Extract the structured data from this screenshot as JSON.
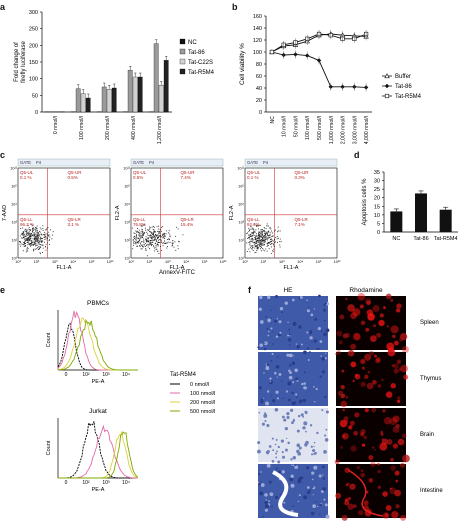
{
  "letters": {
    "a": "a",
    "b": "b",
    "c": "c",
    "d": "d",
    "e": "e",
    "f": "f"
  },
  "panel_a": {
    "ylabel": "Fold change of\nfirefly luciferase",
    "yticks": [
      "0",
      "50",
      "100",
      "150",
      "200",
      "250",
      "300"
    ],
    "categories": [
      "0 nmol/l",
      "100 nmol/l",
      "200 nmol/l",
      "400 nmol/l",
      "1,200 nmol/l"
    ],
    "legend": [
      "NC",
      "Tat-86",
      "Tat-C22S",
      "Tat-R5M4"
    ],
    "colors": {
      "NC": "#111111",
      "Tat-86": "#9a9a9a",
      "Tat-C22S": "#d2d2d2",
      "Tat-R5M4": "#222222"
    }
  },
  "panel_b": {
    "ylabel": "Cell viability %",
    "yticks": [
      "0",
      "20",
      "40",
      "60",
      "80",
      "100",
      "120",
      "140",
      "160"
    ],
    "categories": [
      "NC",
      "10 nmol/l",
      "50 nmol/l",
      "100 nmol/l",
      "500 nmol/l",
      "1,000 nmol/l",
      "2,000 nmol/l",
      "3,000 nmol/l",
      "4,000 nmol/l"
    ],
    "legend": [
      "Buffer",
      "Tat-86",
      "Tat-R5M4"
    ]
  },
  "panel_c": {
    "gate": "GATE",
    "gate_id": "P4",
    "ylabels": [
      "7-AAD",
      "FL2-A",
      "FL2-A"
    ],
    "xlabel": "FL1-A",
    "xtitle": "AnnexV-FITC",
    "quads": [
      {
        "ul": "Q5-UL",
        "ul_v": "0.1 %",
        "ur": "Q5-UR",
        "ur_v": "0.5%",
        "ll": "Q5-LL",
        "ll_v": "96.2 %",
        "lr": "Q5-LR",
        "lr_v": "3.1 %"
      },
      {
        "ul": "Q5-UL",
        "ul_v": "0.5%",
        "ur": "Q5-UR",
        "ur_v": "7.4%",
        "ll": "Q5-LL",
        "ll_v": "76.8%",
        "lr": "Q5-LR",
        "lr_v": "15.4%"
      },
      {
        "ul": "Q5-UL",
        "ul_v": "0.1 %",
        "ur": "Q5-UR",
        "ur_v": "0.3%",
        "ll": "Q5-LL",
        "ll_v": "92.6%",
        "lr": "Q5-LR",
        "lr_v": "7.1%"
      }
    ]
  },
  "panel_d": {
    "ylabel": "Apoptosis cells %",
    "yticks": [
      "0",
      "5",
      "10",
      "15",
      "20",
      "25",
      "30",
      "35"
    ],
    "categories": [
      "NC",
      "Tat-86",
      "Tat-R5M4"
    ]
  },
  "panel_e": {
    "top_title": "PBMCs",
    "bottom_title": "Jurkat",
    "ylabel": "Count",
    "xlabel": "PE-A",
    "legend_title": "Tat-R5M4",
    "legend": [
      "0 nmol/l",
      "100 nmol/l",
      "200 nmol/l",
      "500 nmol/l"
    ],
    "colors": [
      "#000000",
      "#e26aa8",
      "#d9d23a",
      "#7ea800"
    ]
  },
  "panel_f": {
    "col_he": "HE",
    "col_rho": "Rhodamine",
    "rows": [
      "Spleen",
      "Thymus",
      "Brain",
      "Intestine"
    ]
  },
  "chart_data": [
    {
      "type": "bar",
      "title": "",
      "ylabel": "Fold change of firefly luciferase",
      "ylim": [
        0,
        300
      ],
      "categories": [
        "0 nmol/l",
        "100 nmol/l",
        "200 nmol/l",
        "400 nmol/l",
        "1,200 nmol/l"
      ],
      "series": [
        {
          "name": "NC",
          "values": [
            1,
            1,
            1,
            1,
            1
          ]
        },
        {
          "name": "Tat-86",
          "values": [
            1,
            70,
            75,
            125,
            205
          ]
        },
        {
          "name": "Tat-C22S",
          "values": [
            1,
            55,
            68,
            105,
            80
          ]
        },
        {
          "name": "Tat-R5M4",
          "values": [
            1,
            42,
            72,
            105,
            155
          ]
        }
      ]
    },
    {
      "type": "line",
      "ylabel": "Cell viability %",
      "ylim": [
        0,
        160
      ],
      "categories": [
        "NC",
        "10 nmol/l",
        "50 nmol/l",
        "100 nmol/l",
        "500 nmol/l",
        "1,000 nmol/l",
        "2,000 nmol/l",
        "3,000 nmol/l",
        "4,000 nmol/l"
      ],
      "series": [
        {
          "name": "Buffer",
          "values": [
            100,
            110,
            112,
            118,
            128,
            130,
            128,
            127,
            126
          ]
        },
        {
          "name": "Tat-86",
          "values": [
            100,
            95,
            96,
            94,
            86,
            42,
            42,
            42,
            41
          ]
        },
        {
          "name": "Tat-R5M4",
          "values": [
            100,
            112,
            116,
            122,
            130,
            128,
            122,
            122,
            130
          ]
        }
      ]
    },
    {
      "type": "bar",
      "ylabel": "Apoptosis cells %",
      "ylim": [
        0,
        35
      ],
      "categories": [
        "NC",
        "Tat-86",
        "Tat-R5M4"
      ],
      "values": [
        12,
        22.5,
        13
      ]
    }
  ]
}
